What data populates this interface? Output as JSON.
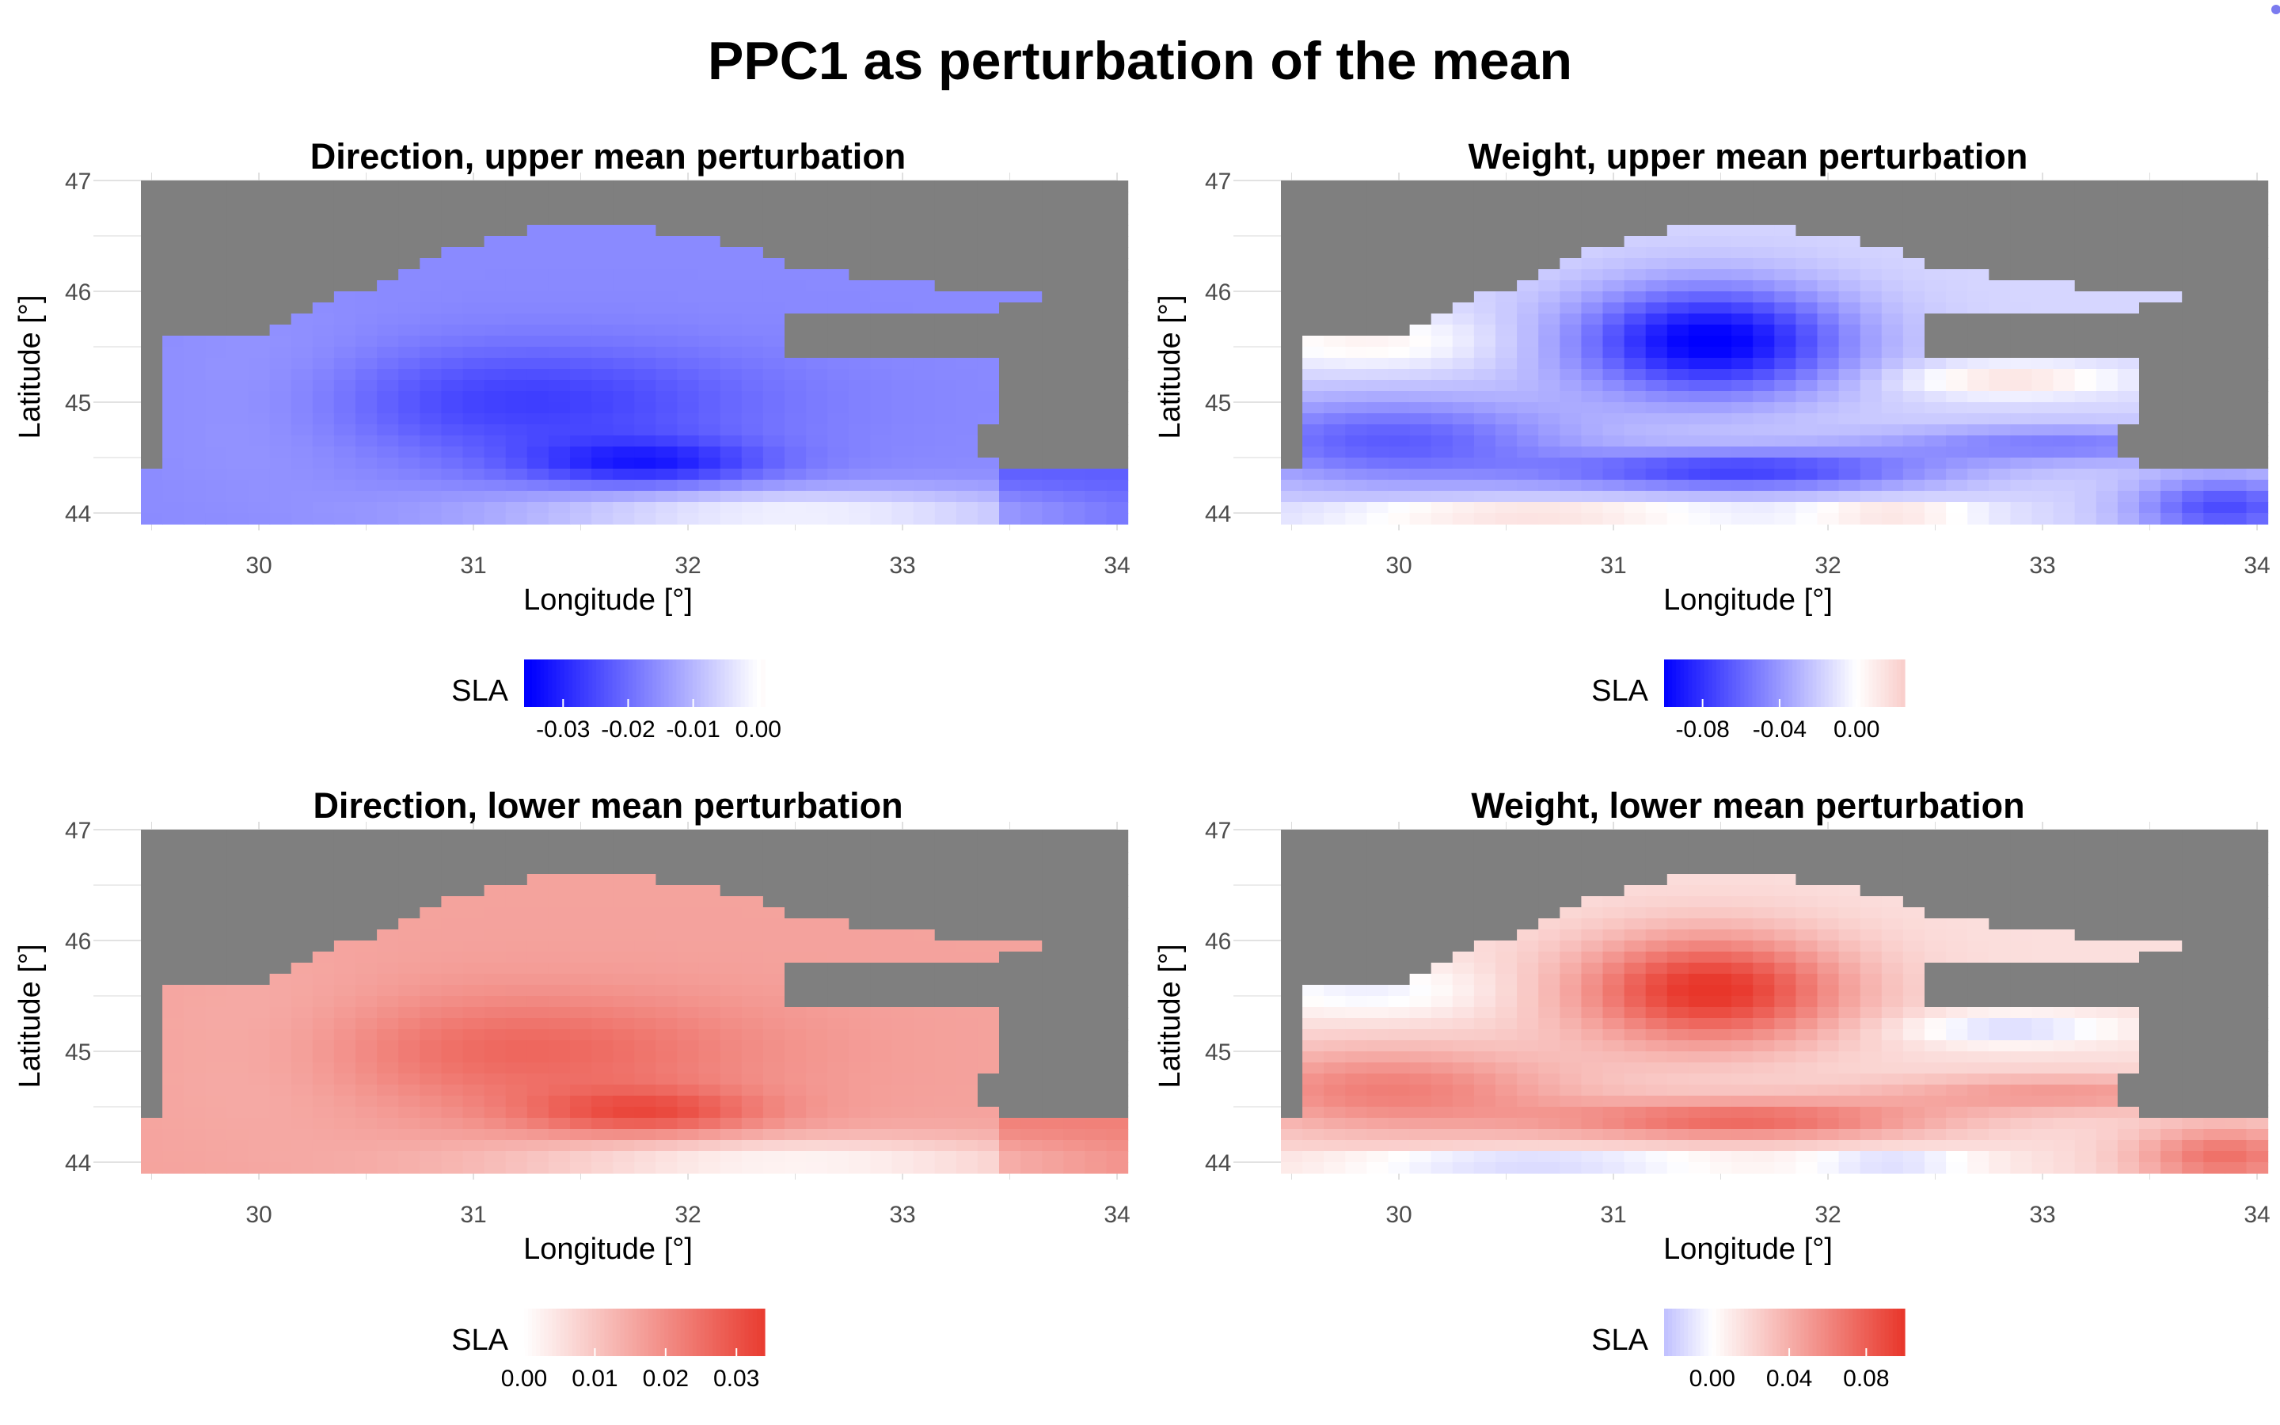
{
  "figure": {
    "title": "PPC1 as perturbation of the mean",
    "colors": {
      "land": "#7f7f7f",
      "negative": "#0000ff",
      "zero": "#ffffff",
      "positive": "#e8362a",
      "grid": "#d9d9d9"
    }
  },
  "chart_data": [
    {
      "type": "heatmap",
      "title": "Direction, upper mean perturbation",
      "xlabel": "Longitude [°]",
      "ylabel": "Latitude [°]",
      "xlim": [
        29.45,
        34.0
      ],
      "ylim": [
        43.9,
        47.0
      ],
      "x_ticks": [
        "30",
        "31",
        "32",
        "33",
        "34"
      ],
      "y_ticks": [
        "44",
        "45",
        "46",
        "47"
      ],
      "grid": true,
      "legend": {
        "title": "SLA",
        "position": "bottom",
        "ticks": [
          "-0.03",
          "-0.02",
          "-0.01",
          "0.00"
        ],
        "tick_values": [
          -0.03,
          -0.02,
          -0.01,
          0.0
        ],
        "range": [
          -0.036,
          0.001
        ]
      },
      "field": {
        "variable": "direction",
        "sign": -1,
        "scale": 0.035,
        "hotspots": [
          {
            "lon": 31.8,
            "lat": 44.45,
            "value": -0.036
          },
          {
            "lon": 31.2,
            "lat": 45.0,
            "value": -0.032
          }
        ]
      }
    },
    {
      "type": "heatmap",
      "title": "Weight, upper mean perturbation",
      "xlabel": "Longitude [°]",
      "ylabel": "Latitude [°]",
      "xlim": [
        29.45,
        34.0
      ],
      "ylim": [
        43.9,
        47.0
      ],
      "x_ticks": [
        "30",
        "31",
        "32",
        "33",
        "34"
      ],
      "y_ticks": [
        "44",
        "45",
        "46",
        "47"
      ],
      "grid": true,
      "legend": {
        "title": "SLA",
        "position": "bottom",
        "ticks": [
          "-0.08",
          "-0.04",
          "0.00"
        ],
        "tick_values": [
          -0.08,
          -0.04,
          0.0
        ],
        "range": [
          -0.1,
          0.025
        ]
      },
      "field": {
        "variable": "weight",
        "sign": -1,
        "scale": 0.1,
        "hotspots": [
          {
            "lon": 31.45,
            "lat": 45.55,
            "value": -0.1
          },
          {
            "lon": 31.6,
            "lat": 44.35,
            "value": -0.08
          },
          {
            "lon": 33.9,
            "lat": 44.05,
            "value": -0.09
          }
        ]
      }
    },
    {
      "type": "heatmap",
      "title": "Direction, lower mean perturbation",
      "xlabel": "Longitude [°]",
      "ylabel": "Latitude [°]",
      "xlim": [
        29.45,
        34.0
      ],
      "ylim": [
        43.9,
        47.0
      ],
      "x_ticks": [
        "30",
        "31",
        "32",
        "33",
        "34"
      ],
      "y_ticks": [
        "44",
        "45",
        "46",
        "47"
      ],
      "grid": true,
      "legend": {
        "title": "SLA",
        "position": "bottom",
        "ticks": [
          "0.00",
          "0.01",
          "0.02",
          "0.03"
        ],
        "tick_values": [
          0.0,
          0.01,
          0.02,
          0.03
        ],
        "range": [
          0.0,
          0.034
        ]
      },
      "field": {
        "variable": "direction",
        "sign": 1,
        "scale": 0.035,
        "hotspots": [
          {
            "lon": 31.8,
            "lat": 44.45,
            "value": 0.034
          },
          {
            "lon": 31.2,
            "lat": 45.0,
            "value": 0.03
          }
        ]
      }
    },
    {
      "type": "heatmap",
      "title": "Weight, lower mean perturbation",
      "xlabel": "Longitude [°]",
      "ylabel": "Latitude [°]",
      "xlim": [
        29.45,
        34.0
      ],
      "ylim": [
        43.9,
        47.0
      ],
      "x_ticks": [
        "30",
        "31",
        "32",
        "33",
        "34"
      ],
      "y_ticks": [
        "44",
        "45",
        "46",
        "47"
      ],
      "grid": true,
      "legend": {
        "title": "SLA",
        "position": "bottom",
        "ticks": [
          "0.00",
          "0.04",
          "0.08"
        ],
        "tick_values": [
          0.0,
          0.04,
          0.08
        ],
        "range": [
          -0.025,
          0.1
        ]
      },
      "field": {
        "variable": "weight",
        "sign": 1,
        "scale": 0.1,
        "hotspots": [
          {
            "lon": 31.45,
            "lat": 45.55,
            "value": 0.1
          },
          {
            "lon": 31.6,
            "lat": 44.35,
            "value": 0.08
          },
          {
            "lon": 33.9,
            "lat": 44.05,
            "value": 0.09
          }
        ]
      }
    }
  ]
}
